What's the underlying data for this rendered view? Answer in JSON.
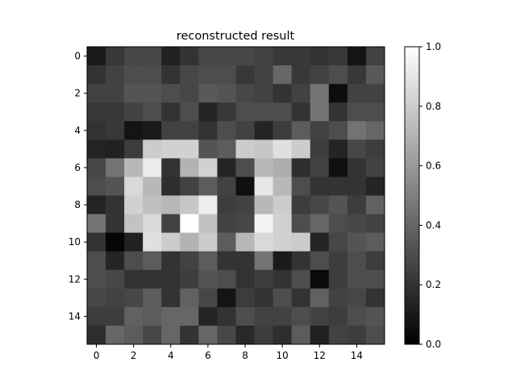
{
  "chart_data": {
    "type": "heatmap",
    "title": "reconstructed result",
    "xlabel": "",
    "ylabel": "",
    "colormap": "gray",
    "vmin": 0.0,
    "vmax": 1.0,
    "rows": 16,
    "cols": 16,
    "xlim": [
      -0.5,
      15.5
    ],
    "ylim": [
      15.5,
      -0.5
    ],
    "xticks": [
      0,
      2,
      4,
      6,
      8,
      10,
      12,
      14
    ],
    "yticks": [
      0,
      2,
      4,
      6,
      8,
      10,
      12,
      14
    ],
    "colorbar_ticks": [
      "0.0",
      "0.2",
      "0.4",
      "0.6",
      "0.8",
      "1.0"
    ],
    "colorbar_tick_values": [
      0.0,
      0.2,
      0.4,
      0.6,
      0.8,
      1.0
    ],
    "grid": false,
    "values": [
      [
        0.1,
        0.22,
        0.28,
        0.28,
        0.13,
        0.2,
        0.28,
        0.28,
        0.28,
        0.26,
        0.22,
        0.22,
        0.2,
        0.22,
        0.08,
        0.26
      ],
      [
        0.2,
        0.26,
        0.3,
        0.3,
        0.2,
        0.28,
        0.3,
        0.3,
        0.22,
        0.26,
        0.4,
        0.22,
        0.26,
        0.3,
        0.22,
        0.35
      ],
      [
        0.26,
        0.26,
        0.33,
        0.33,
        0.3,
        0.28,
        0.35,
        0.33,
        0.28,
        0.26,
        0.2,
        0.26,
        0.45,
        0.05,
        0.26,
        0.26
      ],
      [
        0.22,
        0.22,
        0.26,
        0.3,
        0.2,
        0.3,
        0.14,
        0.22,
        0.3,
        0.3,
        0.3,
        0.2,
        0.45,
        0.2,
        0.3,
        0.3
      ],
      [
        0.2,
        0.22,
        0.08,
        0.1,
        0.26,
        0.26,
        0.2,
        0.3,
        0.26,
        0.14,
        0.24,
        0.36,
        0.26,
        0.3,
        0.45,
        0.4
      ],
      [
        0.14,
        0.13,
        0.24,
        0.8,
        0.82,
        0.82,
        0.33,
        0.36,
        0.8,
        0.78,
        0.88,
        0.8,
        0.24,
        0.14,
        0.28,
        0.24
      ],
      [
        0.28,
        0.45,
        0.72,
        0.92,
        0.2,
        0.7,
        0.82,
        0.14,
        0.3,
        0.72,
        0.68,
        0.18,
        0.26,
        0.06,
        0.2,
        0.26
      ],
      [
        0.3,
        0.33,
        0.85,
        0.72,
        0.18,
        0.26,
        0.36,
        0.26,
        0.06,
        0.9,
        0.72,
        0.3,
        0.2,
        0.2,
        0.2,
        0.14
      ],
      [
        0.14,
        0.2,
        0.82,
        0.75,
        0.72,
        0.78,
        0.93,
        0.24,
        0.26,
        0.72,
        0.8,
        0.24,
        0.28,
        0.33,
        0.24,
        0.38
      ],
      [
        0.45,
        0.2,
        0.76,
        0.85,
        0.26,
        1.0,
        0.76,
        0.26,
        0.28,
        0.95,
        0.82,
        0.3,
        0.4,
        0.3,
        0.28,
        0.26
      ],
      [
        0.2,
        0.02,
        0.13,
        0.88,
        0.8,
        0.7,
        0.8,
        0.36,
        0.72,
        0.85,
        0.82,
        0.8,
        0.14,
        0.28,
        0.33,
        0.36
      ],
      [
        0.3,
        0.14,
        0.3,
        0.36,
        0.2,
        0.26,
        0.36,
        0.2,
        0.2,
        0.45,
        0.1,
        0.2,
        0.3,
        0.24,
        0.3,
        0.24
      ],
      [
        0.3,
        0.28,
        0.2,
        0.2,
        0.2,
        0.24,
        0.33,
        0.3,
        0.2,
        0.24,
        0.2,
        0.3,
        0.04,
        0.24,
        0.3,
        0.3
      ],
      [
        0.28,
        0.26,
        0.28,
        0.36,
        0.2,
        0.38,
        0.28,
        0.08,
        0.24,
        0.2,
        0.3,
        0.2,
        0.38,
        0.26,
        0.28,
        0.2
      ],
      [
        0.24,
        0.24,
        0.38,
        0.36,
        0.4,
        0.4,
        0.14,
        0.2,
        0.3,
        0.26,
        0.26,
        0.3,
        0.26,
        0.24,
        0.3,
        0.33
      ],
      [
        0.18,
        0.4,
        0.36,
        0.28,
        0.4,
        0.2,
        0.4,
        0.28,
        0.16,
        0.24,
        0.18,
        0.36,
        0.13,
        0.26,
        0.24,
        0.3
      ]
    ]
  }
}
